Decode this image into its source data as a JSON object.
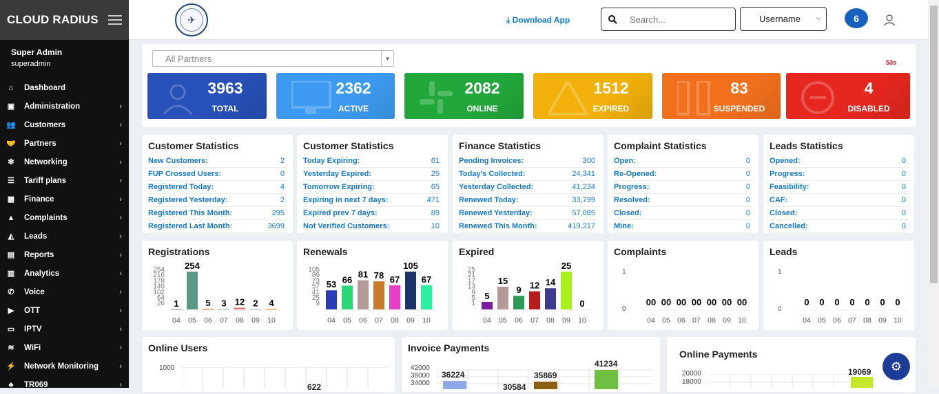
{
  "brand": {
    "name": "CLOUD RADIUS"
  },
  "user": {
    "name": "Super Admin",
    "role": "superadmin"
  },
  "menu": [
    {
      "label": "Dashboard",
      "icon": "home-icon",
      "glyph": "⌂",
      "arrow": false
    },
    {
      "label": "Administration",
      "icon": "admin-icon",
      "glyph": "▣",
      "arrow": true
    },
    {
      "label": "Customers",
      "icon": "users-icon",
      "glyph": "👥",
      "arrow": true
    },
    {
      "label": "Partners",
      "icon": "handshake-icon",
      "glyph": "🤝",
      "arrow": true
    },
    {
      "label": "Networking",
      "icon": "network-icon",
      "glyph": "✻",
      "arrow": true
    },
    {
      "label": "Tariff plans",
      "icon": "list-icon",
      "glyph": "☰",
      "arrow": true
    },
    {
      "label": "Finance",
      "icon": "calculator-icon",
      "glyph": "▦",
      "arrow": true
    },
    {
      "label": "Complaints",
      "icon": "chart-icon",
      "glyph": "▲",
      "arrow": true
    },
    {
      "label": "Leads",
      "icon": "area-chart-icon",
      "glyph": "◭",
      "arrow": true
    },
    {
      "label": "Reports",
      "icon": "file-icon",
      "glyph": "▤",
      "arrow": true
    },
    {
      "label": "Analytics",
      "icon": "bar-chart-icon",
      "glyph": "▥",
      "arrow": true
    },
    {
      "label": "Voice",
      "icon": "phone-icon",
      "glyph": "✆",
      "arrow": true
    },
    {
      "label": "OTT",
      "icon": "play-icon",
      "glyph": "▶",
      "arrow": true
    },
    {
      "label": "IPTV",
      "icon": "tv-icon",
      "glyph": "▭",
      "arrow": true
    },
    {
      "label": "WiFi",
      "icon": "wifi-icon",
      "glyph": "≋",
      "arrow": true
    },
    {
      "label": "Network Monitoring",
      "icon": "plug-icon",
      "glyph": "⚡",
      "arrow": true
    },
    {
      "label": "TR069",
      "icon": "sitemap-icon",
      "glyph": "♣",
      "arrow": true
    }
  ],
  "topbar": {
    "download": "Download App",
    "search_placeholder": "Search...",
    "username": "Username",
    "notif": "6"
  },
  "filter": {
    "partner": "All Partners",
    "timer": "53s"
  },
  "kpis": [
    {
      "value": "3963",
      "label": "TOTAL",
      "color": "#2750b8",
      "icon": "users-icon"
    },
    {
      "value": "2362",
      "label": "ACTIVE",
      "color": "#3c9bf0",
      "icon": "monitor-icon"
    },
    {
      "value": "2082",
      "label": "ONLINE",
      "color": "#22a83a",
      "icon": "slack-icon"
    },
    {
      "value": "1512",
      "label": "EXPIRED",
      "color": "#f2b10a",
      "icon": "warning-icon"
    },
    {
      "value": "83",
      "label": "SUSPENDED",
      "color": "#f2701d",
      "icon": "pause-icon"
    },
    {
      "value": "4",
      "label": "DISABLED",
      "color": "#e5271f",
      "icon": "minus-circle-icon"
    }
  ],
  "stats": [
    {
      "title": "Customer Statistics",
      "rows": [
        [
          "New Customers:",
          "2"
        ],
        [
          "FUP Crossed Users:",
          "0"
        ],
        [
          "Registered Today:",
          "4"
        ],
        [
          "Registered Yesterday:",
          "2"
        ],
        [
          "Registered This Month:",
          "295"
        ],
        [
          "Registered Last Month:",
          "3699"
        ]
      ]
    },
    {
      "title": "Customer Statistics",
      "rows": [
        [
          "Today Expiring:",
          "61"
        ],
        [
          "Yesterday Expired:",
          "25"
        ],
        [
          "Tomorrow Expiring:",
          "65"
        ],
        [
          "Expiring in next 7 days:",
          "471"
        ],
        [
          "Expired prev 7 days:",
          "89"
        ],
        [
          "Not Verified Customers:",
          "10"
        ]
      ]
    },
    {
      "title": "Finance Statistics",
      "rows": [
        [
          "Pending Invoices:",
          "300"
        ],
        [
          "Today's Collected:",
          "24,341"
        ],
        [
          "Yesterday Collected:",
          "41,234"
        ],
        [
          "Renewed Today:",
          "33,799"
        ],
        [
          "Renewed Yesterday:",
          "57,085"
        ],
        [
          "Renewed This Month:",
          "419,217"
        ]
      ]
    },
    {
      "title": "Complaint Statistics",
      "rows": [
        [
          "Open:",
          "0"
        ],
        [
          "Re-Opened:",
          "0"
        ],
        [
          "Progress:",
          "0"
        ],
        [
          "Resolved:",
          "0"
        ],
        [
          "Closed:",
          "0"
        ],
        [
          "Mine:",
          "0"
        ]
      ]
    },
    {
      "title": "Leads Statistics",
      "rows": [
        [
          "Opened:",
          "0"
        ],
        [
          "Progress:",
          "0"
        ],
        [
          "Feasibility:",
          "0"
        ],
        [
          "CAF:",
          "0"
        ],
        [
          "Closed:",
          "0"
        ],
        [
          "Cancelled:",
          "0"
        ]
      ]
    }
  ],
  "chart_data": [
    {
      "type": "bar",
      "title": "Registrations",
      "categories": [
        "04",
        "05",
        "06",
        "07",
        "08",
        "09",
        "10"
      ],
      "values": [
        1,
        254,
        5,
        3,
        12,
        2,
        4
      ],
      "yticks": [
        "254",
        "216",
        "178",
        "140",
        "102",
        "64",
        "26"
      ],
      "colors": [
        "#666",
        "#5b9a87",
        "#e39a6f",
        "#9ec6e8",
        "#e0717a",
        "#aaa",
        "#f0a050"
      ]
    },
    {
      "type": "bar",
      "title": "Renewals",
      "categories": [
        "04",
        "05",
        "06",
        "07",
        "08",
        "09",
        "10"
      ],
      "values": [
        53,
        66,
        81,
        78,
        67,
        105,
        67
      ],
      "yticks": [
        "105",
        "89",
        "73",
        "57",
        "41",
        "25",
        "9"
      ],
      "colors": [
        "#2c3cb4",
        "#2bd678",
        "#b59a9a",
        "#c77b2d",
        "#e53fc9",
        "#1c3368",
        "#2bf0a0"
      ]
    },
    {
      "type": "bar",
      "title": "Expired",
      "categories": [
        "04",
        "05",
        "06",
        "07",
        "08",
        "09",
        "10"
      ],
      "values": [
        5,
        15,
        9,
        12,
        14,
        25,
        0
      ],
      "yticks": [
        "25",
        "21",
        "17",
        "13",
        "9",
        "5",
        "1"
      ],
      "colors": [
        "#7b1fa2",
        "#b59a9a",
        "#2a9a55",
        "#b71c1c",
        "#3d3b8e",
        "#a6f01c",
        "#888"
      ]
    },
    {
      "type": "bar",
      "title": "Complaints",
      "categories": [
        "04",
        "05",
        "06",
        "07",
        "08",
        "09",
        "10"
      ],
      "values": [
        0,
        0,
        0,
        0,
        0,
        0,
        0
      ],
      "value_labels": [
        "00",
        "00",
        "00",
        "00",
        "00",
        "00",
        "00"
      ],
      "yticks": [
        "1",
        "0"
      ],
      "colors": [
        "#888",
        "#888",
        "#888",
        "#888",
        "#888",
        "#888",
        "#888"
      ]
    },
    {
      "type": "bar",
      "title": "Leads",
      "categories": [
        "04",
        "05",
        "06",
        "07",
        "08",
        "09",
        "10"
      ],
      "values": [
        0,
        0,
        0,
        0,
        0,
        0,
        0
      ],
      "value_labels": [
        "0",
        "0",
        "0",
        "0",
        "0",
        "0",
        "0"
      ],
      "yticks": [
        "1",
        "0"
      ],
      "colors": [
        "#888",
        "#888",
        "#888",
        "#888",
        "#888",
        "#888",
        "#888"
      ]
    }
  ],
  "bottom": {
    "online_users": {
      "title": "Online Users",
      "ytick": "1000",
      "partial": "622"
    },
    "invoice": {
      "title": "Invoice Payments",
      "yticks": [
        "42000",
        "38000",
        "34000"
      ],
      "values": [
        "36224",
        "30584",
        "35869",
        "41234"
      ]
    },
    "online_pay": {
      "title": "Online Payments",
      "yticks": [
        "20000",
        "18000"
      ],
      "value": "19069"
    }
  }
}
